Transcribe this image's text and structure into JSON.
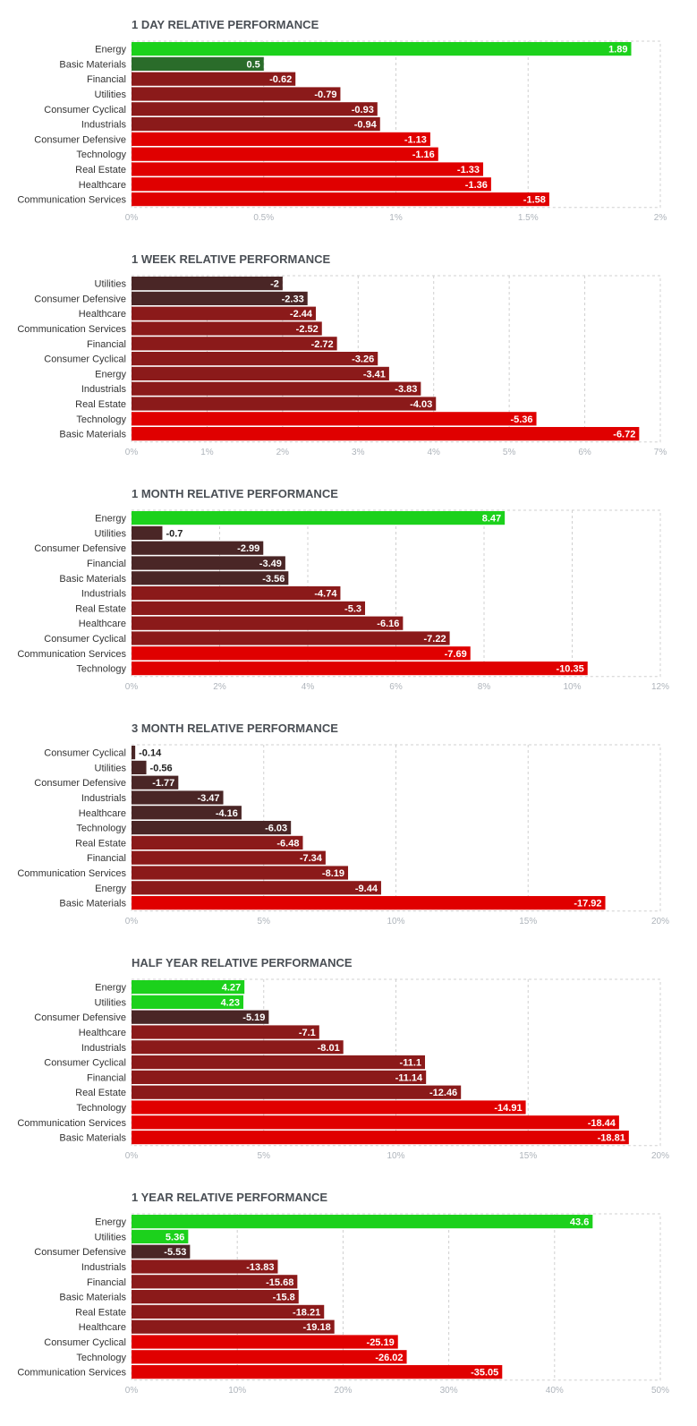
{
  "colors": {
    "positive_strong": "#1cd11c",
    "positive_weak": "#2a6c2a",
    "negative_dark": "#4a2626",
    "negative_mid": "#8b1a1a",
    "negative_strong": "#e00000",
    "grid": "#d0d0d0",
    "tick_text": "#aeb4bb"
  },
  "chart_data": [
    {
      "type": "bar",
      "orientation": "horizontal",
      "title": "1 DAY RELATIVE PERFORMANCE",
      "categories": [
        "Energy",
        "Basic Materials",
        "Financial",
        "Utilities",
        "Consumer Cyclical",
        "Industrials",
        "Consumer Defensive",
        "Technology",
        "Real Estate",
        "Healthcare",
        "Communication Services"
      ],
      "values": [
        1.89,
        0.5,
        -0.62,
        -0.79,
        -0.93,
        -0.94,
        -1.13,
        -1.16,
        -1.33,
        -1.36,
        -1.58
      ],
      "value_labels": [
        "1.89",
        "0.5",
        "-0.62",
        "-0.79",
        "-0.93",
        "-0.94",
        "-1.13",
        "-1.16",
        "-1.33",
        "-1.36",
        "-1.58"
      ],
      "xlim": [
        0,
        2
      ],
      "xticks": [
        "0%",
        "0.5%",
        "1%",
        "1.5%",
        "2%"
      ],
      "grid": true,
      "bar_magnitude": "absolute"
    },
    {
      "type": "bar",
      "orientation": "horizontal",
      "title": "1 WEEK RELATIVE PERFORMANCE",
      "categories": [
        "Utilities",
        "Consumer Defensive",
        "Healthcare",
        "Communication Services",
        "Financial",
        "Consumer Cyclical",
        "Energy",
        "Industrials",
        "Real Estate",
        "Technology",
        "Basic Materials"
      ],
      "values": [
        -2,
        -2.33,
        -2.44,
        -2.52,
        -2.72,
        -3.26,
        -3.41,
        -3.83,
        -4.03,
        -5.36,
        -6.72
      ],
      "value_labels": [
        "-2",
        "-2.33",
        "-2.44",
        "-2.52",
        "-2.72",
        "-3.26",
        "-3.41",
        "-3.83",
        "-4.03",
        "-5.36",
        "-6.72"
      ],
      "xlim": [
        0,
        7
      ],
      "xticks": [
        "0%",
        "1%",
        "2%",
        "3%",
        "4%",
        "5%",
        "6%",
        "7%"
      ],
      "grid": true,
      "bar_magnitude": "absolute"
    },
    {
      "type": "bar",
      "orientation": "horizontal",
      "title": "1 MONTH RELATIVE PERFORMANCE",
      "categories": [
        "Energy",
        "Utilities",
        "Consumer Defensive",
        "Financial",
        "Basic Materials",
        "Industrials",
        "Real Estate",
        "Healthcare",
        "Consumer Cyclical",
        "Communication Services",
        "Technology"
      ],
      "values": [
        8.47,
        -0.7,
        -2.99,
        -3.49,
        -3.56,
        -4.74,
        -5.3,
        -6.16,
        -7.22,
        -7.69,
        -10.35
      ],
      "value_labels": [
        "8.47",
        "-0.7",
        "-2.99",
        "-3.49",
        "-3.56",
        "-4.74",
        "-5.3",
        "-6.16",
        "-7.22",
        "-7.69",
        "-10.35"
      ],
      "xlim": [
        0,
        12
      ],
      "xticks": [
        "0%",
        "2%",
        "4%",
        "6%",
        "8%",
        "10%",
        "12%"
      ],
      "grid": true,
      "bar_magnitude": "absolute"
    },
    {
      "type": "bar",
      "orientation": "horizontal",
      "title": "3 MONTH RELATIVE PERFORMANCE",
      "categories": [
        "Consumer Cyclical",
        "Utilities",
        "Consumer Defensive",
        "Industrials",
        "Healthcare",
        "Technology",
        "Real Estate",
        "Financial",
        "Communication Services",
        "Energy",
        "Basic Materials"
      ],
      "values": [
        -0.14,
        -0.56,
        -1.77,
        -3.47,
        -4.16,
        -6.03,
        -6.48,
        -7.34,
        -8.19,
        -9.44,
        -17.92
      ],
      "value_labels": [
        "-0.14",
        "-0.56",
        "-1.77",
        "-3.47",
        "-4.16",
        "-6.03",
        "-6.48",
        "-7.34",
        "-8.19",
        "-9.44",
        "-17.92"
      ],
      "xlim": [
        0,
        20
      ],
      "xticks": [
        "0%",
        "5%",
        "10%",
        "15%",
        "20%"
      ],
      "grid": true,
      "bar_magnitude": "absolute"
    },
    {
      "type": "bar",
      "orientation": "horizontal",
      "title": "HALF YEAR RELATIVE PERFORMANCE",
      "categories": [
        "Energy",
        "Utilities",
        "Consumer Defensive",
        "Healthcare",
        "Industrials",
        "Consumer Cyclical",
        "Financial",
        "Real Estate",
        "Technology",
        "Communication Services",
        "Basic Materials"
      ],
      "values": [
        4.27,
        4.23,
        -5.19,
        -7.1,
        -8.01,
        -11.1,
        -11.14,
        -12.46,
        -14.91,
        -18.44,
        -18.81
      ],
      "value_labels": [
        "4.27",
        "4.23",
        "-5.19",
        "-7.1",
        "-8.01",
        "-11.1",
        "-11.14",
        "-12.46",
        "-14.91",
        "-18.44",
        "-18.81"
      ],
      "xlim": [
        0,
        20
      ],
      "xticks": [
        "0%",
        "5%",
        "10%",
        "15%",
        "20%"
      ],
      "grid": true,
      "bar_magnitude": "absolute"
    },
    {
      "type": "bar",
      "orientation": "horizontal",
      "title": "1 YEAR RELATIVE PERFORMANCE",
      "categories": [
        "Energy",
        "Utilities",
        "Consumer Defensive",
        "Industrials",
        "Financial",
        "Basic Materials",
        "Real Estate",
        "Healthcare",
        "Consumer Cyclical",
        "Technology",
        "Communication Services"
      ],
      "values": [
        43.6,
        5.36,
        -5.53,
        -13.83,
        -15.68,
        -15.8,
        -18.21,
        -19.18,
        -25.19,
        -26.02,
        -35.05
      ],
      "value_labels": [
        "43.6",
        "5.36",
        "-5.53",
        "-13.83",
        "-15.68",
        "-15.8",
        "-18.21",
        "-19.18",
        "-25.19",
        "-26.02",
        "-35.05"
      ],
      "xlim": [
        0,
        50
      ],
      "xticks": [
        "0%",
        "10%",
        "20%",
        "30%",
        "40%",
        "50%"
      ],
      "grid": true,
      "bar_magnitude": "absolute"
    }
  ]
}
